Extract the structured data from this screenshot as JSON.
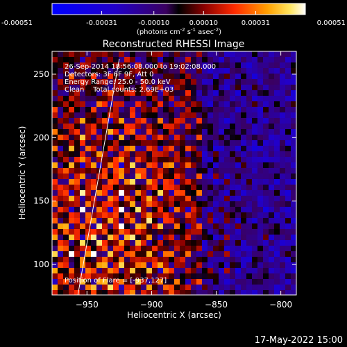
{
  "chart_data": {
    "type": "heatmap",
    "title": "Reconstructed RHESSI Image",
    "xlabel": "Heliocentric X (arcsec)",
    "ylabel": "Heliocentric Y (arcsec)",
    "xlim": [
      -977,
      -788
    ],
    "ylim": [
      76,
      268
    ],
    "x_ticks": [
      -950,
      -900,
      -850,
      -800
    ],
    "y_ticks": [
      100,
      150,
      200,
      250
    ],
    "colorbar": {
      "min": -0.00051,
      "max": 0.00051,
      "tick_values": [
        -0.00051,
        -0.00031,
        -0.0001,
        0.0001,
        0.00031,
        0.00051
      ],
      "tick_labels": [
        "-0.00051",
        "-0.00031",
        "-0.00010",
        "0.00010",
        "0.00031",
        "0.00051"
      ],
      "units_label": "(photons cm",
      "units_exp1": "-2",
      "units_mid": " s",
      "units_exp2": "-1",
      "units_mid2": " asec",
      "units_exp3": "-2",
      "units_end": ")"
    },
    "annotations": [
      "26-Sep-2014 18:56:08.000 to 19:02:08.000",
      "Detectors: 3F 6F 9F, Att 0",
      "Energy Range: 25.0 - 50.0 keV",
      "Clean    Total counts: 2.69E+03"
    ],
    "flare_label": "Position of Flare = [-937,127]",
    "flare_position": [
      -937,
      127
    ],
    "limb_line": [
      [
        -957,
        76
      ],
      [
        -925,
        262
      ]
    ],
    "colors": {
      "limb": "#ffffff",
      "text": "#ffffff",
      "background": "#000000"
    }
  },
  "footer": {
    "timestamp": "17-May-2022 15:00"
  }
}
